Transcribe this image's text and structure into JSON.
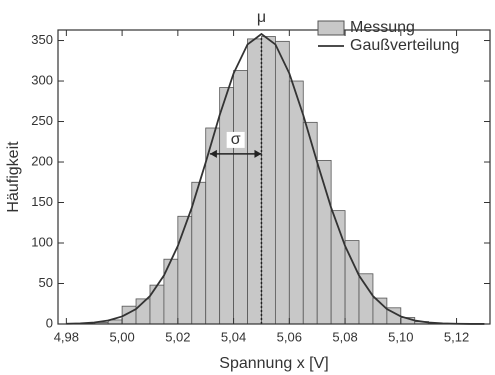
{
  "chart_data": {
    "type": "histogram",
    "xlabel": "Spannung x [V]",
    "ylabel": "Häufigkeit",
    "bins": [
      4.99,
      4.995,
      5.0,
      5.005,
      5.01,
      5.015,
      5.02,
      5.025,
      5.03,
      5.035,
      5.04,
      5.045,
      5.05,
      5.055,
      5.06,
      5.065,
      5.07,
      5.075,
      5.08,
      5.085,
      5.09,
      5.095,
      5.1,
      5.105,
      5.11
    ],
    "series": [
      {
        "name": "Messung",
        "type": "histogram",
        "color": "#c8c8c8",
        "values": [
          2,
          5,
          22,
          31,
          48,
          80,
          133,
          175,
          242,
          292,
          313,
          352,
          355,
          349,
          300,
          249,
          202,
          140,
          103,
          62,
          32,
          20,
          8,
          3
        ]
      },
      {
        "name": "Gaußverteilung",
        "type": "line",
        "color": "#333333",
        "x": [
          4.98,
          4.985,
          4.99,
          4.995,
          5.0,
          5.005,
          5.01,
          5.015,
          5.02,
          5.025,
          5.03,
          5.035,
          5.04,
          5.045,
          5.05,
          5.055,
          5.06,
          5.065,
          5.07,
          5.075,
          5.08,
          5.085,
          5.09,
          5.095,
          5.1,
          5.105,
          5.11,
          5.115,
          5.12,
          5.125,
          5.13
        ],
        "values": [
          0.3,
          0.7,
          1.9,
          4.3,
          9.3,
          18.5,
          34.5,
          59.8,
          96.4,
          143.6,
          199.6,
          257.9,
          309.4,
          345.2,
          358,
          345.2,
          309.4,
          257.9,
          199.6,
          143.6,
          96.4,
          59.8,
          34.5,
          18.5,
          9.3,
          4.3,
          1.9,
          0.7,
          0.3,
          0.1,
          0.05
        ]
      }
    ],
    "annotations": [
      {
        "text": "μ",
        "x": 5.05
      },
      {
        "text": "σ",
        "x": [
          5.0315,
          5.05
        ],
        "y": 210
      }
    ],
    "xlim": [
      4.977,
      5.132
    ],
    "ylim": [
      0,
      363
    ],
    "xticks": [
      {
        "value": 4.98,
        "label": "4,98"
      },
      {
        "value": 5.0,
        "label": "5,00"
      },
      {
        "value": 5.02,
        "label": "5,02"
      },
      {
        "value": 5.04,
        "label": "5,04"
      },
      {
        "value": 5.06,
        "label": "5,06"
      },
      {
        "value": 5.08,
        "label": "5,08"
      },
      {
        "value": 5.1,
        "label": "5,10"
      },
      {
        "value": 5.12,
        "label": "5,12"
      }
    ],
    "yticks": [
      0,
      50,
      100,
      150,
      200,
      250,
      300,
      350
    ],
    "legend": "upper-right",
    "grid": false
  }
}
